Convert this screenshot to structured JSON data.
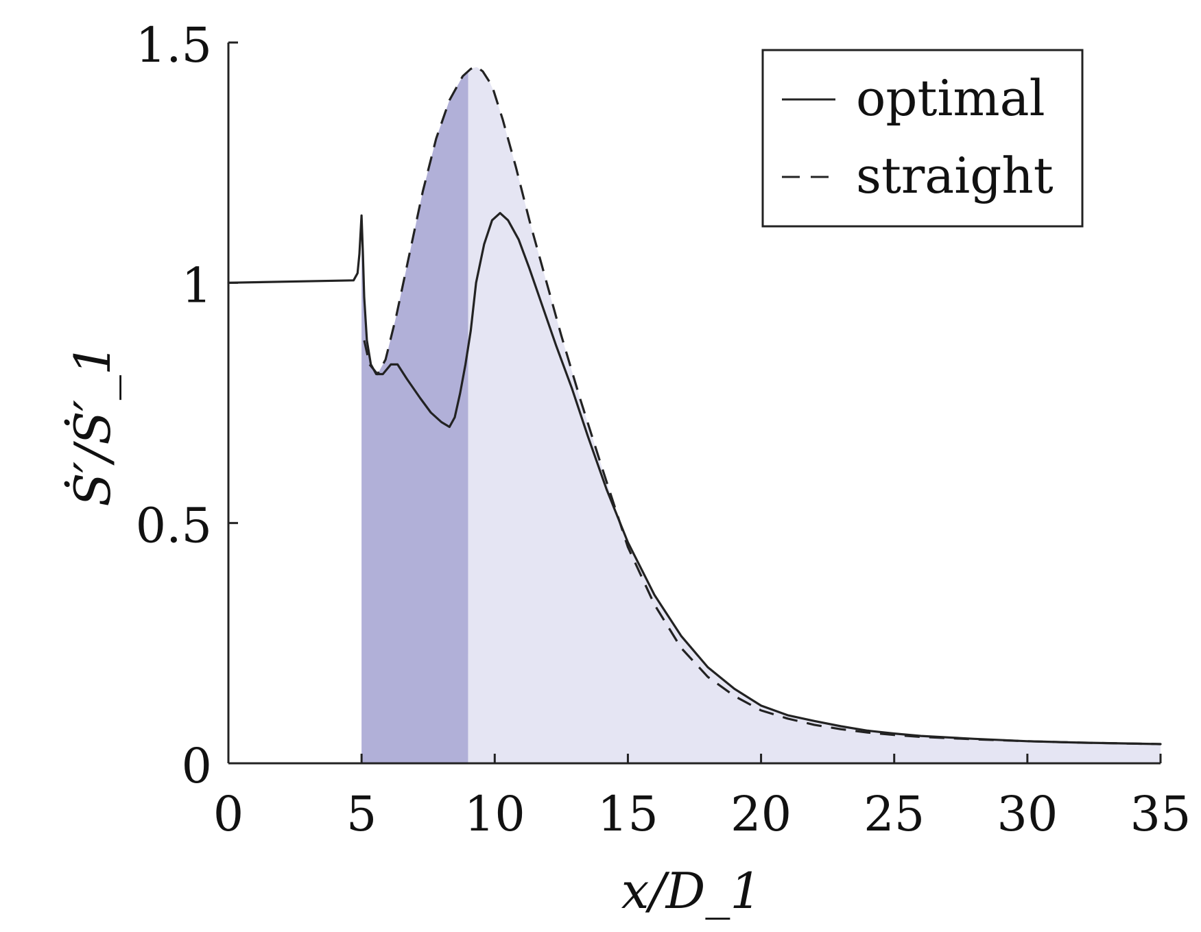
{
  "chart_data": {
    "type": "line",
    "title": "",
    "xlabel": "x/D_1",
    "ylabel": "Ṡ′/Ṡ′_1",
    "xlim": [
      0,
      35
    ],
    "ylim": [
      0,
      1.5
    ],
    "xticks": [
      0,
      5,
      10,
      15,
      20,
      25,
      30,
      35
    ],
    "yticks": [
      0,
      0.5,
      1,
      1.5
    ],
    "xtick_labels": [
      "0",
      "5",
      "10",
      "15",
      "20",
      "25",
      "30",
      "35"
    ],
    "ytick_labels": [
      "0",
      "0.5",
      "1",
      "1.5"
    ],
    "grid": false,
    "legend_position": "top-right",
    "colors": {
      "line": "#222222",
      "shade_dark": "#b1b0d8",
      "shade_light": "#e5e5f3"
    },
    "shaded_regions": [
      {
        "name": "section-a",
        "x_range": [
          5,
          9
        ],
        "color": "#b1b0d8"
      },
      {
        "name": "section-b",
        "x_range": [
          9,
          35
        ],
        "color": "#e5e5f3"
      }
    ],
    "series": [
      {
        "name": "optimal",
        "style": "solid",
        "x": [
          0,
          4.7,
          4.85,
          4.92,
          5.0,
          5.05,
          5.1,
          5.2,
          5.35,
          5.55,
          5.8,
          6.1,
          6.35,
          6.7,
          7.2,
          7.6,
          8.0,
          8.3,
          8.5,
          8.7,
          8.9,
          9.1,
          9.3,
          9.6,
          9.9,
          10.2,
          10.5,
          10.9,
          11.3,
          11.8,
          12.3,
          12.9,
          13.5,
          14.2,
          15.0,
          16.0,
          17.0,
          18.0,
          19.0,
          20.0,
          21.0,
          22.0,
          23.0,
          24.0,
          25.0,
          26.0,
          28.0,
          30.0,
          32.0,
          35.0
        ],
        "y": [
          1.0,
          1.005,
          1.02,
          1.06,
          1.14,
          1.06,
          0.97,
          0.88,
          0.83,
          0.81,
          0.81,
          0.83,
          0.83,
          0.8,
          0.76,
          0.73,
          0.71,
          0.7,
          0.72,
          0.77,
          0.83,
          0.9,
          1.0,
          1.08,
          1.13,
          1.145,
          1.13,
          1.09,
          1.03,
          0.95,
          0.87,
          0.78,
          0.68,
          0.57,
          0.46,
          0.35,
          0.265,
          0.2,
          0.155,
          0.12,
          0.1,
          0.088,
          0.077,
          0.068,
          0.062,
          0.057,
          0.051,
          0.046,
          0.043,
          0.04
        ]
      },
      {
        "name": "straight",
        "style": "dashed",
        "x": [
          5.1,
          5.3,
          5.6,
          5.9,
          6.3,
          6.8,
          7.3,
          7.8,
          8.3,
          8.8,
          9.1,
          9.3,
          9.55,
          9.9,
          10.3,
          10.8,
          11.3,
          11.9,
          12.5,
          13.2,
          14.0,
          15.0,
          16.0,
          17.0,
          18.0,
          19.0,
          20.0,
          21.0,
          22.0,
          23.0,
          24.0,
          25.0,
          26.0,
          28.0,
          30.0,
          32.0,
          35.0
        ],
        "y": [
          0.88,
          0.83,
          0.81,
          0.84,
          0.93,
          1.06,
          1.19,
          1.3,
          1.38,
          1.43,
          1.445,
          1.45,
          1.44,
          1.41,
          1.34,
          1.24,
          1.13,
          1.01,
          0.89,
          0.76,
          0.62,
          0.45,
          0.33,
          0.24,
          0.18,
          0.14,
          0.11,
          0.093,
          0.08,
          0.071,
          0.064,
          0.059,
          0.055,
          0.05,
          0.046,
          0.043,
          0.04
        ]
      }
    ]
  }
}
